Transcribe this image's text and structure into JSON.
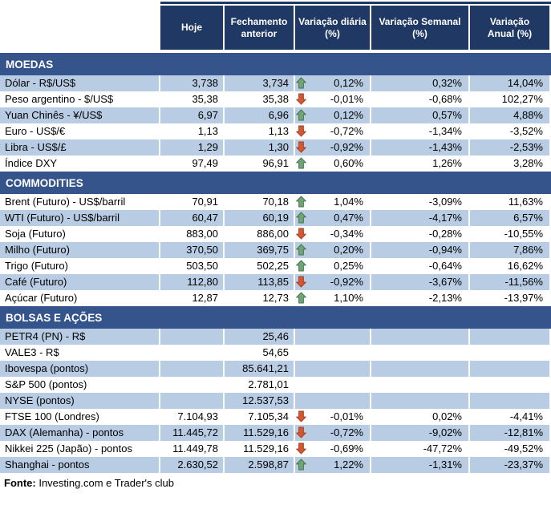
{
  "colors": {
    "header_bg": "#1F3864",
    "section_bg": "#35548B",
    "row_shade": "#B8CCE4",
    "arrow_up_fill": "#70A573",
    "arrow_up_stroke": "#41704E",
    "arrow_down_fill": "#D3582F",
    "arrow_down_stroke": "#A33B1F"
  },
  "table": {
    "columns": [
      "Hoje",
      "Fechamento\nanterior",
      "Variação diária\n(%)",
      "Variação Semanal\n(%)",
      "Variação\nAnual (%)"
    ],
    "sections": [
      {
        "title": "MOEDAS",
        "first_row_shaded": true,
        "rows": [
          {
            "label": "Dólar - R$/US$",
            "hoje": "3,738",
            "fechamento": "3,734",
            "arrow": "up",
            "diaria": "0,12%",
            "semanal": "0,32%",
            "anual": "14,04%"
          },
          {
            "label": "Peso argentino - $/US$",
            "hoje": "35,38",
            "fechamento": "35,38",
            "arrow": "down",
            "diaria": "-0,01%",
            "semanal": "-0,68%",
            "anual": "102,27%"
          },
          {
            "label": "Yuan Chinês - ¥/US$",
            "hoje": "6,97",
            "fechamento": "6,96",
            "arrow": "up",
            "diaria": "0,12%",
            "semanal": "0,57%",
            "anual": "4,88%"
          },
          {
            "label": "Euro - US$/€",
            "hoje": "1,13",
            "fechamento": "1,13",
            "arrow": "down",
            "diaria": "-0,72%",
            "semanal": "-1,34%",
            "anual": "-3,52%"
          },
          {
            "label": "Libra - US$/£",
            "hoje": "1,29",
            "fechamento": "1,30",
            "arrow": "down",
            "diaria": "-0,92%",
            "semanal": "-1,43%",
            "anual": "-2,53%"
          },
          {
            "label": "Índice DXY",
            "hoje": "97,49",
            "fechamento": "96,91",
            "arrow": "up",
            "diaria": "0,60%",
            "semanal": "1,26%",
            "anual": "3,28%"
          }
        ]
      },
      {
        "title": "COMMODITIES",
        "first_row_shaded": false,
        "rows": [
          {
            "label": "Brent (Futuro) - US$/barril",
            "hoje": "70,91",
            "fechamento": "70,18",
            "arrow": "up",
            "diaria": "1,04%",
            "semanal": "-3,09%",
            "anual": "11,63%"
          },
          {
            "label": "WTI (Futuro) - US$/barril",
            "hoje": "60,47",
            "fechamento": "60,19",
            "arrow": "up",
            "diaria": "0,47%",
            "semanal": "-4,17%",
            "anual": "6,57%"
          },
          {
            "label": "Soja (Futuro)",
            "hoje": "883,00",
            "fechamento": "886,00",
            "arrow": "down",
            "diaria": "-0,34%",
            "semanal": "-0,28%",
            "anual": "-10,55%"
          },
          {
            "label": "Milho (Futuro)",
            "hoje": "370,50",
            "fechamento": "369,75",
            "arrow": "up",
            "diaria": "0,20%",
            "semanal": "-0,94%",
            "anual": "7,86%"
          },
          {
            "label": "Trigo (Futuro)",
            "hoje": "503,50",
            "fechamento": "502,25",
            "arrow": "up",
            "diaria": "0,25%",
            "semanal": "-0,64%",
            "anual": "16,62%"
          },
          {
            "label": "Café (Futuro)",
            "hoje": "112,80",
            "fechamento": "113,85",
            "arrow": "down",
            "diaria": "-0,92%",
            "semanal": "-3,67%",
            "anual": "-11,56%"
          },
          {
            "label": "Açúcar (Futuro)",
            "hoje": "12,87",
            "fechamento": "12,73",
            "arrow": "up",
            "diaria": "1,10%",
            "semanal": "-2,13%",
            "anual": "-13,97%"
          }
        ]
      },
      {
        "title": "BOLSAS E AÇÕES",
        "first_row_shaded": true,
        "rows": [
          {
            "label": "PETR4 (PN) - R$",
            "hoje": "",
            "fechamento": "25,46",
            "arrow": null,
            "diaria": "",
            "semanal": "",
            "anual": ""
          },
          {
            "label": "VALE3 - R$",
            "hoje": "",
            "fechamento": "54,65",
            "arrow": null,
            "diaria": "",
            "semanal": "",
            "anual": ""
          },
          {
            "label": "Ibovespa (pontos)",
            "hoje": "",
            "fechamento": "85.641,21",
            "arrow": null,
            "diaria": "",
            "semanal": "",
            "anual": ""
          },
          {
            "label": "S&P 500 (pontos)",
            "hoje": "",
            "fechamento": "2.781,01",
            "arrow": null,
            "diaria": "",
            "semanal": "",
            "anual": ""
          },
          {
            "label": "NYSE (pontos)",
            "hoje": "",
            "fechamento": "12.537,53",
            "arrow": null,
            "diaria": "",
            "semanal": "",
            "anual": ""
          },
          {
            "label": "FTSE 100 (Londres)",
            "hoje": "7.104,93",
            "fechamento": "7.105,34",
            "arrow": "down",
            "diaria": "-0,01%",
            "semanal": "0,02%",
            "anual": "-4,41%"
          },
          {
            "label": "DAX (Alemanha) - pontos",
            "hoje": "11.445,72",
            "fechamento": "11.529,16",
            "arrow": "down",
            "diaria": "-0,72%",
            "semanal": "-9,02%",
            "anual": "-12,81%"
          },
          {
            "label": "Nikkei 225 (Japão) - pontos",
            "hoje": "11.449,78",
            "fechamento": "11.529,16",
            "arrow": "down",
            "diaria": "-0,69%",
            "semanal": "-47,72%",
            "anual": "-49,52%"
          },
          {
            "label": "Shanghai - pontos",
            "hoje": "2.630,52",
            "fechamento": "2.598,87",
            "arrow": "up",
            "diaria": "1,22%",
            "semanal": "-1,31%",
            "anual": "-23,37%"
          }
        ]
      }
    ]
  },
  "footer": {
    "label": "Fonte:",
    "text": " Investing.com e Trader's club"
  }
}
